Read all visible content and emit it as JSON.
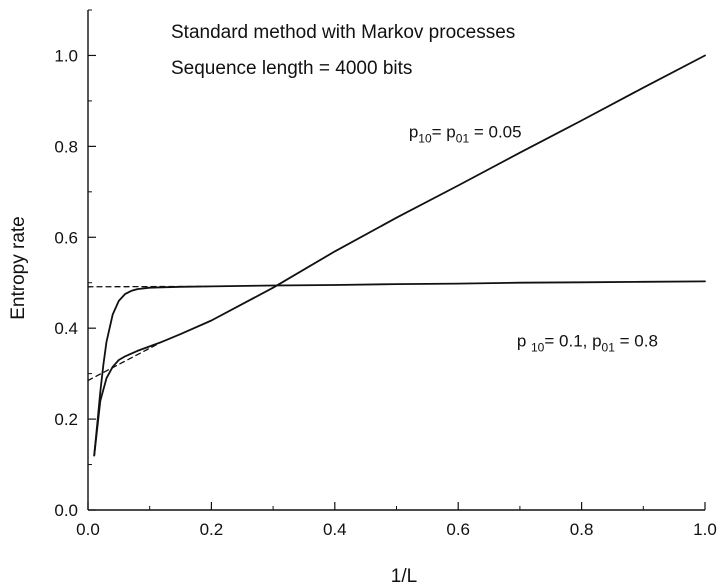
{
  "chart_data": {
    "type": "line",
    "title": "Standard method with Markov processes",
    "subtitle": "Sequence length = 4000 bits",
    "xlabel": "1/L",
    "ylabel": "Entropy rate",
    "xlim": [
      0.0,
      1.0
    ],
    "ylim": [
      0.0,
      1.1
    ],
    "x_ticks": [
      "0.0",
      "0.2",
      "0.4",
      "0.6",
      "0.8",
      "1.0"
    ],
    "y_ticks": [
      "0.0",
      "0.2",
      "0.4",
      "0.6",
      "0.8",
      "1.0"
    ],
    "x_tick_values": [
      0.0,
      0.2,
      0.4,
      0.6,
      0.8,
      1.0
    ],
    "y_tick_values": [
      0.0,
      0.2,
      0.4,
      0.6,
      0.8,
      1.0
    ],
    "grid": false,
    "series": [
      {
        "style": "solid",
        "color": "#111111",
        "x": [
          0.01,
          0.02,
          0.03,
          0.04,
          0.05,
          0.06,
          0.08,
          0.1,
          0.12,
          0.15,
          0.2,
          0.3,
          0.4,
          0.5,
          0.6,
          0.7,
          0.8,
          0.9,
          1.0
        ],
        "y": [
          0.12,
          0.24,
          0.29,
          0.315,
          0.33,
          0.338,
          0.35,
          0.36,
          0.37,
          0.387,
          0.417,
          0.489,
          0.569,
          0.643,
          0.714,
          0.786,
          0.857,
          0.929,
          1.0
        ]
      },
      {
        "style": "solid",
        "color": "#111111",
        "x": [
          0.01,
          0.015,
          0.02,
          0.025,
          0.03,
          0.04,
          0.05,
          0.06,
          0.07,
          0.08,
          0.1,
          0.12,
          0.15,
          0.2,
          0.3,
          0.4,
          0.5,
          0.6,
          0.7,
          0.8,
          0.9,
          1.0
        ],
        "y": [
          0.12,
          0.19,
          0.26,
          0.32,
          0.37,
          0.43,
          0.46,
          0.475,
          0.482,
          0.486,
          0.489,
          0.49,
          0.491,
          0.492,
          0.494,
          0.495,
          0.497,
          0.498,
          0.5,
          0.501,
          0.502,
          0.503
        ]
      },
      {
        "style": "dashed",
        "color": "#111111",
        "x": [
          0.0,
          0.2
        ],
        "y": [
          0.491,
          0.492
        ]
      },
      {
        "style": "dashed",
        "color": "#111111",
        "x": [
          0.0,
          0.12
        ],
        "y": [
          0.285,
          0.37
        ]
      }
    ],
    "annotations": [
      {
        "base": "p",
        "sub": "10",
        "mid": "= p",
        "sub2": "01",
        "tail": " = 0.05",
        "x": 0.52,
        "y": 0.82
      },
      {
        "base": "p ",
        "sub": "10",
        "mid": "= 0.1, p",
        "sub2": "01",
        "tail": " = 0.8",
        "x": 0.695,
        "y": 0.36
      }
    ]
  }
}
